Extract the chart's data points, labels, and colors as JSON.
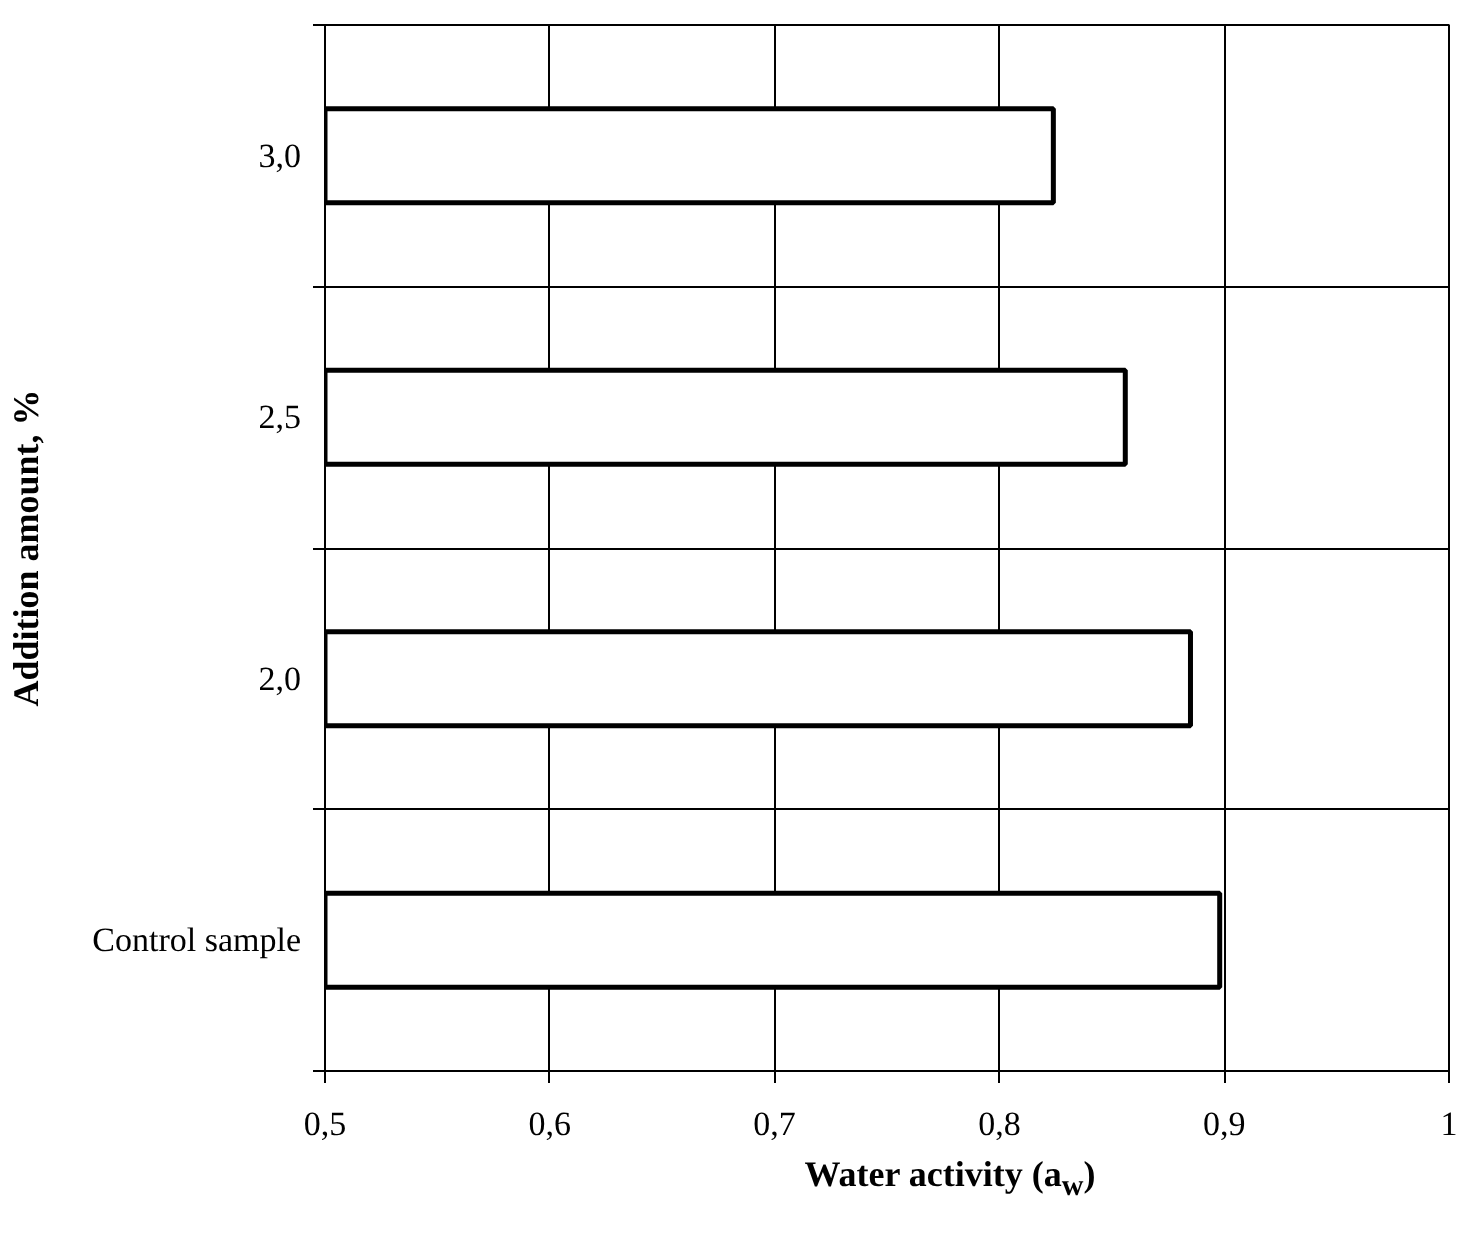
{
  "chart_data": {
    "type": "bar",
    "orientation": "horizontal",
    "categories": [
      "3,0",
      "2,5",
      "2,0",
      "Control sample"
    ],
    "values": [
      0.824,
      0.856,
      0.885,
      0.898
    ],
    "color": "#ffffff",
    "xlabel": "Water activity (a$_{w}$)",
    "ylabel": "Addition amount, %",
    "xlim": [
      0.5,
      1
    ],
    "xticks": [
      {
        "value": 0.5,
        "label": "0,5"
      },
      {
        "value": 0.6,
        "label": "0,6"
      },
      {
        "value": 0.7,
        "label": "0,7"
      },
      {
        "value": 0.8,
        "label": "0,8"
      },
      {
        "value": 0.9,
        "label": "0,9"
      },
      1
    ],
    "grid": true
  }
}
